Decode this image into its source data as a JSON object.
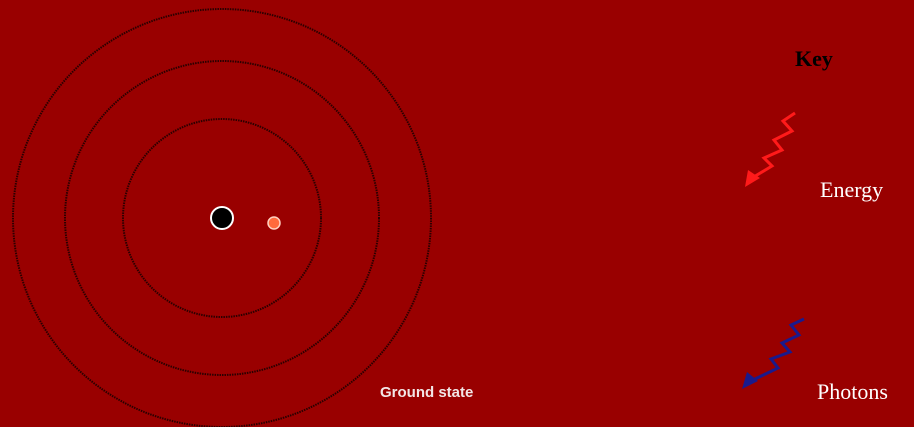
{
  "diagram": {
    "state_label": "Ground state",
    "key": {
      "title": "Key",
      "items": [
        {
          "label": "Energy",
          "icon": "red-zigzag-arrow-icon",
          "color": "#ff1a1a"
        },
        {
          "label": "Photons",
          "icon": "blue-zigzag-arrow-icon",
          "color": "#1a1a8c"
        }
      ]
    }
  },
  "colors": {
    "background": "#990000",
    "orbit": "#2a0000",
    "nucleus": "#000000",
    "electron": "#ff6a3d"
  }
}
